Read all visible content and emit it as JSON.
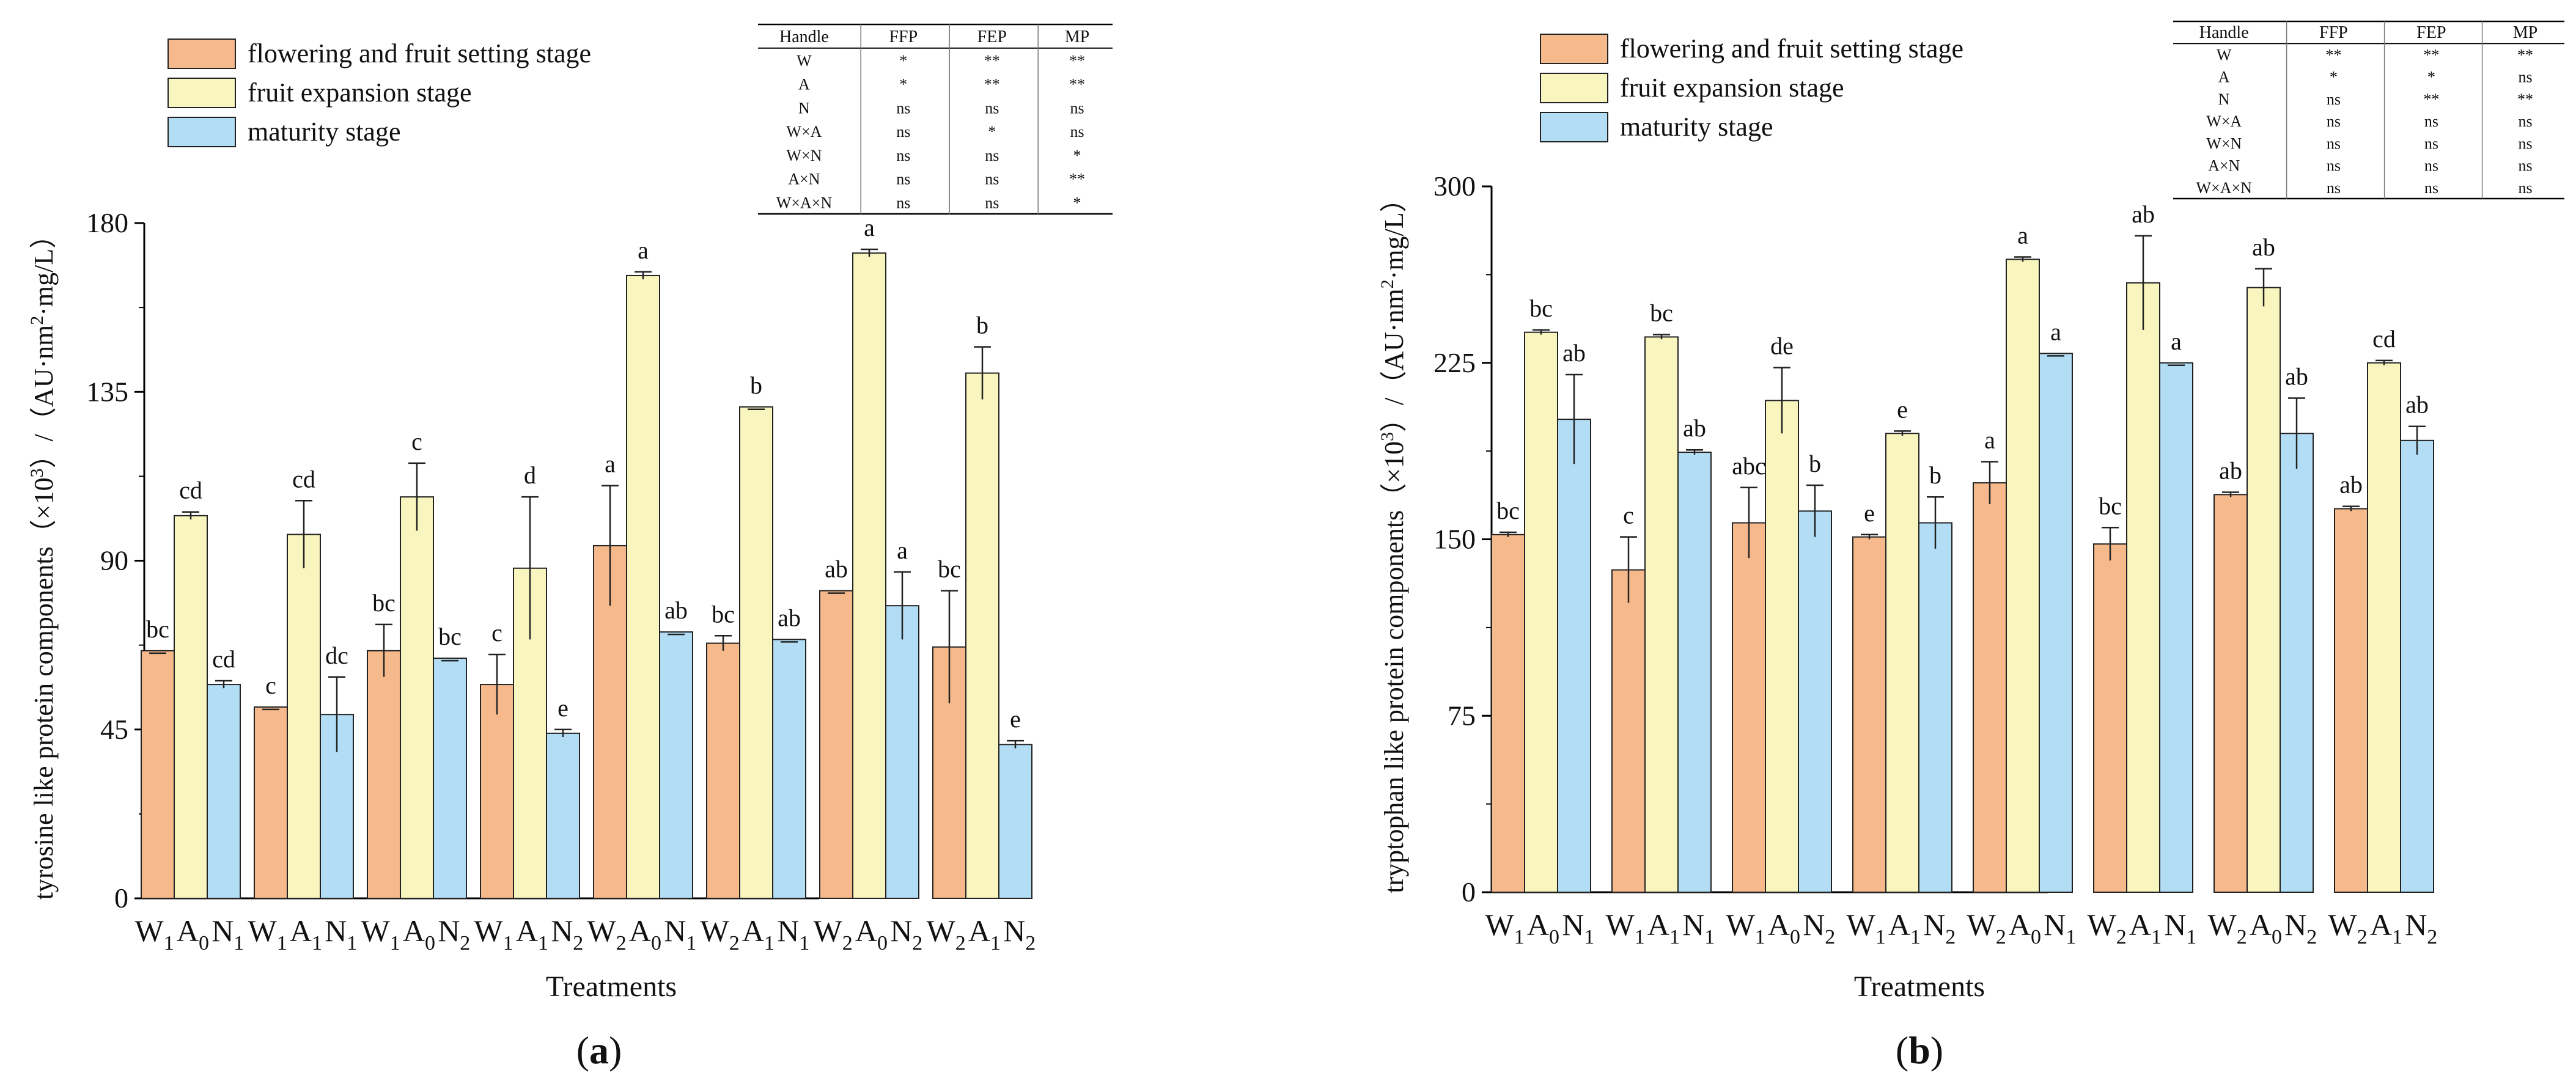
{
  "legend_labels": [
    "flowering and fruit setting stage",
    "fruit expansion stage",
    "maturity stage"
  ],
  "colors": {
    "ffp": "#f6b98b",
    "fep": "#f8f5bf",
    "mp": "#b3ddf4",
    "stroke": "#222222"
  },
  "chart_data": [
    {
      "type": "bar",
      "panel_label": "a",
      "panel_label_open": "(",
      "panel_label_close": ")",
      "categories": [
        "W1A0N1",
        "W1A1N1",
        "W1A0N2",
        "W1A1N2",
        "W2A0N1",
        "W2A1N1",
        "W2A0N2",
        "W2A1N2"
      ],
      "category_parts": [
        [
          "W",
          "1",
          "A",
          "0",
          "N",
          "1"
        ],
        [
          "W",
          "1",
          "A",
          "1",
          "N",
          "1"
        ],
        [
          "W",
          "1",
          "A",
          "0",
          "N",
          "2"
        ],
        [
          "W",
          "1",
          "A",
          "1",
          "N",
          "2"
        ],
        [
          "W",
          "2",
          "A",
          "0",
          "N",
          "1"
        ],
        [
          "W",
          "2",
          "A",
          "1",
          "N",
          "1"
        ],
        [
          "W",
          "2",
          "A",
          "0",
          "N",
          "2"
        ],
        [
          "W",
          "2",
          "A",
          "1",
          "N",
          "2"
        ]
      ],
      "series": [
        {
          "name": "flowering and fruit setting stage",
          "values": [
            66,
            51,
            66,
            57,
            94,
            68,
            82,
            67
          ],
          "errors": [
            0,
            0,
            7,
            8,
            16,
            2,
            0,
            15
          ],
          "letters": [
            "bc",
            "c",
            "bc",
            "c",
            "a",
            "bc",
            "ab",
            "bc"
          ]
        },
        {
          "name": "fruit expansion stage",
          "values": [
            102,
            97,
            107,
            88,
            166,
            131,
            172,
            140
          ],
          "errors": [
            1,
            9,
            9,
            19,
            1,
            0,
            1,
            7
          ],
          "letters": [
            "cd",
            "cd",
            "c",
            "d",
            "a",
            "b",
            "a",
            "b"
          ]
        },
        {
          "name": "maturity stage",
          "values": [
            57,
            49,
            64,
            44,
            71,
            69,
            78,
            41
          ],
          "errors": [
            1,
            10,
            0,
            1,
            0,
            0,
            9,
            1
          ],
          "letters": [
            "cd",
            "dc",
            "bc",
            "e",
            "ab",
            "ab",
            "a",
            "e"
          ]
        }
      ],
      "title": "",
      "xlabel": "Treatments",
      "ylabel": "tyrosine like protein components（×10",
      "ylabel_sup": "3",
      "ylabel_tail": "）/（AU·nm",
      "ylabel_sup2": "2",
      "ylabel_tail2": "·mg/L）",
      "ylim": [
        0,
        180
      ],
      "yticks": [
        0,
        45,
        90,
        135,
        180
      ],
      "significance_table": {
        "header": [
          "Handle",
          "FFP",
          "FEP",
          "MP"
        ],
        "rows": [
          [
            "W",
            "*",
            "**",
            "**"
          ],
          [
            "A",
            "*",
            "**",
            "**"
          ],
          [
            "N",
            "ns",
            "ns",
            "ns"
          ],
          [
            "W×A",
            "ns",
            "*",
            "ns"
          ],
          [
            "W×N",
            "ns",
            "ns",
            "*"
          ],
          [
            "A×N",
            "ns",
            "ns",
            "**"
          ],
          [
            "W×A×N",
            "ns",
            "ns",
            "*"
          ]
        ]
      }
    },
    {
      "type": "bar",
      "panel_label": "b",
      "panel_label_open": "(",
      "panel_label_close": ")",
      "categories": [
        "W1A0N1",
        "W1A1N1",
        "W1A0N2",
        "W1A1N2",
        "W2A0N1",
        "W2A1N1",
        "W2A0N2",
        "W2A1N2"
      ],
      "category_parts": [
        [
          "W",
          "1",
          "A",
          "0",
          "N",
          "1"
        ],
        [
          "W",
          "1",
          "A",
          "1",
          "N",
          "1"
        ],
        [
          "W",
          "1",
          "A",
          "0",
          "N",
          "2"
        ],
        [
          "W",
          "1",
          "A",
          "1",
          "N",
          "2"
        ],
        [
          "W",
          "2",
          "A",
          "0",
          "N",
          "1"
        ],
        [
          "W",
          "2",
          "A",
          "1",
          "N",
          "1"
        ],
        [
          "W",
          "2",
          "A",
          "0",
          "N",
          "2"
        ],
        [
          "W",
          "2",
          "A",
          "1",
          "N",
          "2"
        ]
      ],
      "series": [
        {
          "name": "flowering and fruit setting stage",
          "values": [
            152,
            137,
            157,
            151,
            174,
            148,
            169,
            163
          ],
          "errors": [
            1,
            14,
            15,
            1,
            9,
            7,
            1,
            1
          ],
          "letters": [
            "bc",
            "c",
            "abc",
            "e",
            "a",
            "bc",
            "ab",
            "ab"
          ]
        },
        {
          "name": "fruit expansion stage",
          "values": [
            238,
            236,
            209,
            195,
            269,
            259,
            257,
            225
          ],
          "errors": [
            1,
            1,
            14,
            1,
            1,
            20,
            8,
            1
          ],
          "letters": [
            "bc",
            "bc",
            "de",
            "e",
            "a",
            "ab",
            "ab",
            "cd"
          ]
        },
        {
          "name": "maturity stage",
          "values": [
            201,
            187,
            162,
            157,
            229,
            225,
            195,
            192
          ],
          "errors": [
            19,
            1,
            11,
            11,
            0,
            0,
            15,
            6
          ],
          "letters": [
            "ab",
            "ab",
            "b",
            "b",
            "a",
            "a",
            "ab",
            "ab"
          ]
        }
      ],
      "title": "",
      "xlabel": "Treatments",
      "ylabel": "tryptophan like protein components（×10",
      "ylabel_sup": "3",
      "ylabel_tail": "）/（AU·nm",
      "ylabel_sup2": "2",
      "ylabel_tail2": "·mg/L）",
      "ylim": [
        0,
        300
      ],
      "yticks": [
        0,
        75,
        150,
        225,
        300
      ],
      "significance_table": {
        "header": [
          "Handle",
          "FFP",
          "FEP",
          "MP"
        ],
        "rows": [
          [
            "W",
            "**",
            "**",
            "**"
          ],
          [
            "A",
            "*",
            "*",
            "ns"
          ],
          [
            "N",
            "ns",
            "**",
            "**"
          ],
          [
            "W×A",
            "ns",
            "ns",
            "ns"
          ],
          [
            "W×N",
            "ns",
            "ns",
            "ns"
          ],
          [
            "A×N",
            "ns",
            "ns",
            "ns"
          ],
          [
            "W×A×N",
            "ns",
            "ns",
            "ns"
          ]
        ]
      }
    }
  ]
}
